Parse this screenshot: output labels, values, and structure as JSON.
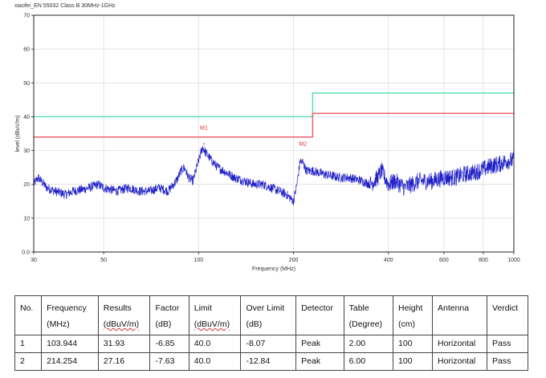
{
  "chart_data": {
    "type": "line",
    "title": "xiaofei_EN 55032 Class B 30MHz-1GHz",
    "xlabel": "Frequency (MHz)",
    "ylabel": "level (dBuV/m)",
    "xlim": [
      30,
      1000
    ],
    "ylim": [
      0,
      70
    ],
    "x_ticks": [
      30,
      50,
      100,
      200,
      400,
      600,
      800,
      1000
    ],
    "x_tick_labels": [
      "30",
      "50",
      "100",
      "200",
      "400",
      "600",
      "800",
      "1000"
    ],
    "y_ticks": [
      0,
      10,
      20,
      30,
      40,
      50,
      60,
      70
    ],
    "y_tick_labels": [
      "0.0",
      "10",
      "20",
      "30",
      "40",
      "50",
      "60",
      "70"
    ],
    "grid": true,
    "series": [
      {
        "color": "#5ce0b0",
        "x": [
          30,
          230,
          230,
          1000
        ],
        "values": [
          40,
          40,
          47,
          47
        ]
      },
      {
        "color": "#f06070",
        "x": [
          30,
          230,
          230,
          1000
        ],
        "values": [
          34,
          34,
          41,
          41
        ]
      },
      {
        "color": "#2020c8",
        "noisy": true,
        "x": [
          30,
          31,
          33,
          35,
          38,
          40,
          43,
          45,
          48,
          50,
          55,
          60,
          65,
          70,
          75,
          80,
          85,
          88,
          90,
          93,
          96,
          100,
          103,
          106,
          110,
          115,
          120,
          130,
          140,
          150,
          160,
          170,
          180,
          190,
          200,
          205,
          210,
          215,
          220,
          230,
          250,
          280,
          300,
          330,
          350,
          370,
          380,
          400,
          420,
          450,
          500,
          550,
          600,
          650,
          700,
          750,
          800,
          850,
          900,
          950,
          1000
        ],
        "values": [
          20,
          22,
          19,
          18,
          17,
          18,
          18.5,
          19,
          20,
          19,
          18,
          19,
          18,
          18,
          19,
          18,
          21,
          24,
          25,
          22,
          21,
          27,
          31,
          29,
          27,
          25,
          24,
          22,
          21,
          20,
          20,
          19,
          18,
          17,
          15,
          20,
          27,
          26,
          24,
          24,
          23,
          22,
          22,
          21,
          20,
          22,
          24,
          20,
          21,
          19,
          21,
          21,
          22,
          22,
          23,
          23.5,
          24.5,
          25.5,
          26,
          27,
          27
        ]
      }
    ],
    "markers": [
      {
        "label": "M1",
        "x": 103.944,
        "y": 31.93
      },
      {
        "label": "M2",
        "x": 214.254,
        "y": 27.16
      }
    ],
    "colors": {
      "axis": "#222222",
      "grid": "#d8d8d8",
      "marker": "#e03030"
    }
  },
  "table": {
    "headers": [
      [
        "No.",
        ""
      ],
      [
        "Frequency",
        "(MHz)"
      ],
      [
        "Results",
        "(dBuV/m)"
      ],
      [
        "Factor",
        "(dB)"
      ],
      [
        "Limit",
        "(dBuV/m)"
      ],
      [
        "Over Limit",
        "(dB)"
      ],
      [
        "Detector",
        ""
      ],
      [
        "Table",
        "(Degree)"
      ],
      [
        "Height",
        "(cm)"
      ],
      [
        "Antenna",
        ""
      ],
      [
        "Verdict",
        ""
      ]
    ],
    "rows": [
      [
        "1",
        "103.944",
        "31.93",
        "-6.85",
        "40.0",
        "-8.07",
        "Peak",
        "2.00",
        "100",
        "Horizontal",
        "Pass"
      ],
      [
        "2",
        "214.254",
        "27.16",
        "-7.63",
        "40.0",
        "-12.84",
        "Peak",
        "6.00",
        "100",
        "Horizontal",
        "Pass"
      ]
    ]
  }
}
